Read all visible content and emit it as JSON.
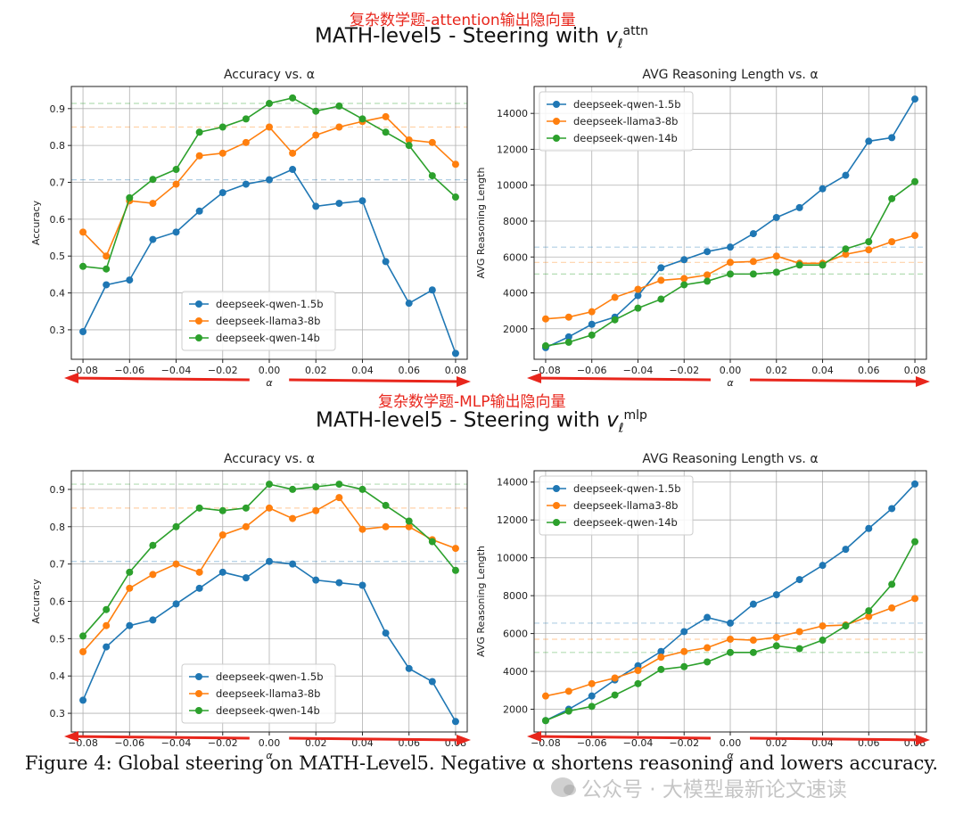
{
  "annotations": {
    "top": "复杂数学题-attention输出隐向量",
    "bottom": "复杂数学题-MLP输出隐向量"
  },
  "suptitles": [
    {
      "prefix": "MATH-level5 - Steering with ",
      "var": "v",
      "sub": "ℓ",
      "sup": "attn"
    },
    {
      "prefix": "MATH-level5 - Steering with ",
      "var": "v",
      "sub": "ℓ",
      "sup": "mlp"
    }
  ],
  "caption": "Figure 4: Global steering on MATH-Level5. Negative α shortens reasoning and lowers accuracy.",
  "watermark": "公众号 · 大模型最新论文速读",
  "colors": {
    "blue": "#1f77b4",
    "orange": "#ff7f0e",
    "green": "#2ca02c",
    "arrow": "#e8261c"
  },
  "chart_data": [
    {
      "id": "attn-accuracy",
      "type": "line",
      "title": "Accuracy vs. α",
      "xlabel": "α",
      "ylabel": "Accuracy",
      "xlim": [
        -0.085,
        0.085
      ],
      "ylim": [
        0.22,
        0.96
      ],
      "xticks": [
        -0.08,
        -0.06,
        -0.04,
        -0.02,
        0.0,
        0.02,
        0.04,
        0.06,
        0.08
      ],
      "xtick_labels": [
        "−0.08",
        "−0.06",
        "−0.04",
        "−0.02",
        "0.00",
        "0.02",
        "0.04",
        "0.06",
        "0.08"
      ],
      "yticks": [
        0.3,
        0.4,
        0.5,
        0.6,
        0.7,
        0.8,
        0.9
      ],
      "ytick_labels": [
        "0.3",
        "0.4",
        "0.5",
        "0.6",
        "0.7",
        "0.8",
        "0.9"
      ],
      "legend": "lower-center",
      "x": [
        -0.08,
        -0.07,
        -0.06,
        -0.05,
        -0.04,
        -0.03,
        -0.02,
        -0.01,
        0.0,
        0.01,
        0.02,
        0.03,
        0.04,
        0.05,
        0.06,
        0.07,
        0.08
      ],
      "series": [
        {
          "name": "deepseek-qwen-1.5b",
          "color": "#1f77b4",
          "baseline": 0.707,
          "values": [
            0.295,
            0.422,
            0.435,
            0.545,
            0.565,
            0.622,
            0.672,
            0.695,
            0.707,
            0.735,
            0.635,
            0.643,
            0.65,
            0.485,
            0.372,
            0.408,
            0.236
          ]
        },
        {
          "name": "deepseek-llama3-8b",
          "color": "#ff7f0e",
          "baseline": 0.85,
          "values": [
            0.565,
            0.5,
            0.65,
            0.643,
            0.695,
            0.772,
            0.779,
            0.808,
            0.85,
            0.779,
            0.828,
            0.85,
            0.865,
            0.878,
            0.815,
            0.808,
            0.749
          ]
        },
        {
          "name": "deepseek-qwen-14b",
          "color": "#2ca02c",
          "baseline": 0.914,
          "values": [
            0.472,
            0.465,
            0.658,
            0.708,
            0.735,
            0.836,
            0.85,
            0.872,
            0.914,
            0.929,
            0.893,
            0.907,
            0.872,
            0.836,
            0.8,
            0.718,
            0.66
          ]
        }
      ]
    },
    {
      "id": "attn-length",
      "type": "line",
      "title": "AVG Reasoning Length vs. α",
      "xlabel": "α",
      "ylabel": "AVG Reasoning Length",
      "xlim": [
        -0.085,
        0.085
      ],
      "ylim": [
        300,
        15500
      ],
      "xticks": [
        -0.08,
        -0.06,
        -0.04,
        -0.02,
        0.0,
        0.02,
        0.04,
        0.06,
        0.08
      ],
      "xtick_labels": [
        "−0.08",
        "−0.06",
        "−0.04",
        "−0.02",
        "0.00",
        "0.02",
        "0.04",
        "0.06",
        "0.08"
      ],
      "yticks": [
        2000,
        4000,
        6000,
        8000,
        10000,
        12000,
        14000
      ],
      "ytick_labels": [
        "2000",
        "4000",
        "6000",
        "8000",
        "10000",
        "12000",
        "14000"
      ],
      "legend": "upper-left",
      "x": [
        -0.08,
        -0.07,
        -0.06,
        -0.05,
        -0.04,
        -0.03,
        -0.02,
        -0.01,
        0.0,
        0.01,
        0.02,
        0.03,
        0.04,
        0.05,
        0.06,
        0.07,
        0.08
      ],
      "series": [
        {
          "name": "deepseek-qwen-1.5b",
          "color": "#1f77b4",
          "baseline": 6550,
          "values": [
            950,
            1550,
            2250,
            2650,
            3850,
            5400,
            5850,
            6300,
            6550,
            7300,
            8200,
            8750,
            9800,
            10550,
            12450,
            12650,
            14800
          ]
        },
        {
          "name": "deepseek-llama3-8b",
          "color": "#ff7f0e",
          "baseline": 5700,
          "values": [
            2550,
            2650,
            2950,
            3750,
            4200,
            4700,
            4800,
            5000,
            5700,
            5750,
            6050,
            5650,
            5650,
            6150,
            6400,
            6850,
            7200
          ]
        },
        {
          "name": "deepseek-qwen-14b",
          "color": "#2ca02c",
          "baseline": 5050,
          "values": [
            1050,
            1250,
            1650,
            2500,
            3150,
            3650,
            4450,
            4650,
            5050,
            5050,
            5150,
            5550,
            5550,
            6450,
            6850,
            9250,
            10200
          ]
        }
      ]
    },
    {
      "id": "mlp-accuracy",
      "type": "line",
      "title": "Accuracy vs. α",
      "xlabel": "α",
      "ylabel": "Accuracy",
      "xlim": [
        -0.085,
        0.085
      ],
      "ylim": [
        0.25,
        0.95
      ],
      "xticks": [
        -0.08,
        -0.06,
        -0.04,
        -0.02,
        0.0,
        0.02,
        0.04,
        0.06,
        0.08
      ],
      "xtick_labels": [
        "−0.08",
        "−0.06",
        "−0.04",
        "−0.02",
        "0.00",
        "0.02",
        "0.04",
        "0.06",
        "0.08"
      ],
      "yticks": [
        0.3,
        0.4,
        0.5,
        0.6,
        0.7,
        0.8,
        0.9
      ],
      "ytick_labels": [
        "0.3",
        "0.4",
        "0.5",
        "0.6",
        "0.7",
        "0.8",
        "0.9"
      ],
      "legend": "lower-center",
      "x": [
        -0.08,
        -0.07,
        -0.06,
        -0.05,
        -0.04,
        -0.03,
        -0.02,
        -0.01,
        0.0,
        0.01,
        0.02,
        0.03,
        0.04,
        0.05,
        0.06,
        0.07,
        0.08
      ],
      "series": [
        {
          "name": "deepseek-qwen-1.5b",
          "color": "#1f77b4",
          "baseline": 0.707,
          "values": [
            0.335,
            0.478,
            0.535,
            0.55,
            0.593,
            0.635,
            0.678,
            0.663,
            0.707,
            0.7,
            0.657,
            0.65,
            0.643,
            0.515,
            0.42,
            0.385,
            0.278
          ]
        },
        {
          "name": "deepseek-llama3-8b",
          "color": "#ff7f0e",
          "baseline": 0.85,
          "values": [
            0.465,
            0.535,
            0.635,
            0.672,
            0.7,
            0.678,
            0.778,
            0.8,
            0.85,
            0.822,
            0.843,
            0.878,
            0.793,
            0.8,
            0.8,
            0.765,
            0.742
          ]
        },
        {
          "name": "deepseek-qwen-14b",
          "color": "#2ca02c",
          "baseline": 0.914,
          "values": [
            0.507,
            0.578,
            0.678,
            0.75,
            0.8,
            0.85,
            0.843,
            0.85,
            0.914,
            0.9,
            0.907,
            0.914,
            0.9,
            0.857,
            0.815,
            0.76,
            0.683
          ]
        }
      ]
    },
    {
      "id": "mlp-length",
      "type": "line",
      "title": "AVG Reasoning Length vs. α",
      "xlabel": "α",
      "ylabel": "AVG Reasoning Length",
      "xlim": [
        -0.085,
        0.085
      ],
      "ylim": [
        800,
        14600
      ],
      "xticks": [
        -0.08,
        -0.06,
        -0.04,
        -0.02,
        0.0,
        0.02,
        0.04,
        0.06,
        0.08
      ],
      "xtick_labels": [
        "−0.08",
        "−0.06",
        "−0.04",
        "−0.02",
        "0.00",
        "0.02",
        "0.04",
        "0.06",
        "0.08"
      ],
      "yticks": [
        2000,
        4000,
        6000,
        8000,
        10000,
        12000,
        14000
      ],
      "ytick_labels": [
        "2000",
        "4000",
        "6000",
        "8000",
        "10000",
        "12000",
        "14000"
      ],
      "legend": "upper-left",
      "x": [
        -0.08,
        -0.07,
        -0.06,
        -0.05,
        -0.04,
        -0.03,
        -0.02,
        -0.01,
        0.0,
        0.01,
        0.02,
        0.03,
        0.04,
        0.05,
        0.06,
        0.07,
        0.08
      ],
      "series": [
        {
          "name": "deepseek-qwen-1.5b",
          "color": "#1f77b4",
          "baseline": 6550,
          "values": [
            1400,
            2000,
            2700,
            3550,
            4300,
            5050,
            6100,
            6850,
            6550,
            7550,
            8050,
            8850,
            9600,
            10450,
            11550,
            12600,
            13900
          ]
        },
        {
          "name": "deepseek-llama3-8b",
          "color": "#ff7f0e",
          "baseline": 5700,
          "values": [
            2700,
            2950,
            3350,
            3650,
            4050,
            4750,
            5050,
            5250,
            5700,
            5650,
            5800,
            6100,
            6400,
            6450,
            6900,
            7350,
            7850
          ]
        },
        {
          "name": "deepseek-qwen-14b",
          "color": "#2ca02c",
          "baseline": 5000,
          "values": [
            1400,
            1900,
            2150,
            2750,
            3350,
            4100,
            4250,
            4500,
            5000,
            5000,
            5350,
            5200,
            5650,
            6400,
            7200,
            8600,
            10850
          ]
        }
      ]
    }
  ]
}
